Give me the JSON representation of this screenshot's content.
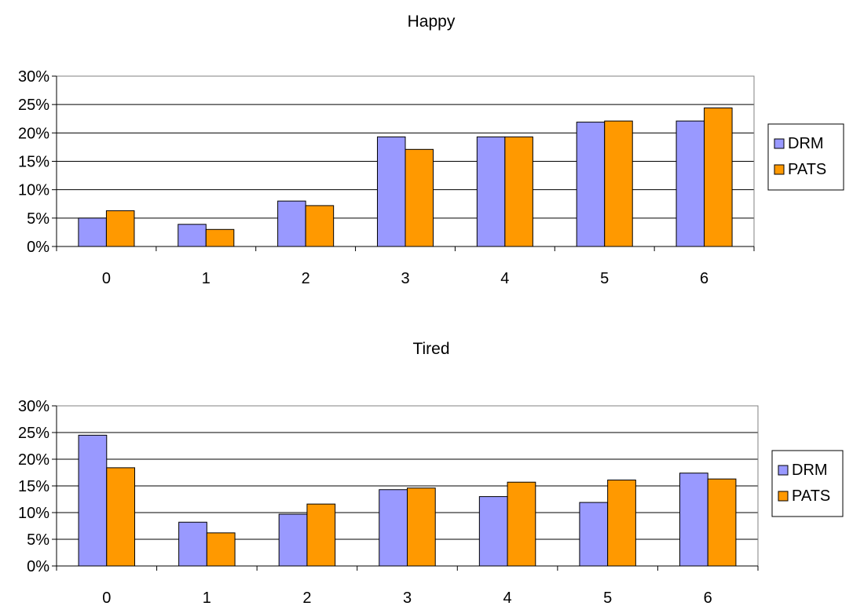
{
  "chart_data": [
    {
      "type": "bar",
      "title": "Happy",
      "xlabel": "",
      "ylabel": "",
      "categories": [
        "0",
        "1",
        "2",
        "3",
        "4",
        "5",
        "6"
      ],
      "series": [
        {
          "name": "DRM",
          "values": [
            5.0,
            3.9,
            8.0,
            19.3,
            19.3,
            21.9,
            22.1
          ],
          "color": "#9999ff"
        },
        {
          "name": "PATS",
          "values": [
            6.3,
            3.0,
            7.2,
            17.1,
            19.3,
            22.1,
            24.4
          ],
          "color": "#ff9900"
        }
      ],
      "ylim": [
        0,
        30
      ],
      "yticks": [
        "0%",
        "5%",
        "10%",
        "15%",
        "20%",
        "25%",
        "30%"
      ],
      "grid": true,
      "legend": "right"
    },
    {
      "type": "bar",
      "title": "Tired",
      "xlabel": "",
      "ylabel": "",
      "categories": [
        "0",
        "1",
        "2",
        "3",
        "4",
        "5",
        "6"
      ],
      "series": [
        {
          "name": "DRM",
          "values": [
            24.5,
            8.2,
            9.7,
            14.3,
            13.0,
            11.9,
            17.4
          ],
          "color": "#9999ff"
        },
        {
          "name": "PATS",
          "values": [
            18.4,
            6.2,
            11.6,
            14.6,
            15.7,
            16.1,
            16.3
          ],
          "color": "#ff9900"
        }
      ],
      "ylim": [
        0,
        30
      ],
      "yticks": [
        "0%",
        "5%",
        "10%",
        "15%",
        "20%",
        "25%",
        "30%"
      ],
      "grid": true,
      "legend": "right"
    }
  ]
}
